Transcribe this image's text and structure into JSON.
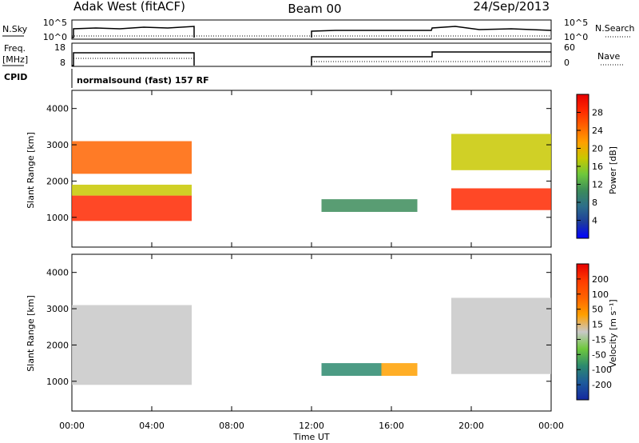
{
  "header": {
    "site": "Adak West (fitACF)",
    "beam": "Beam 00",
    "date": "24/Sep/2013"
  },
  "noise_panel": {
    "left_label": "N.Sky",
    "right_label": "N.Search",
    "left_ticks": [
      "10^5",
      "10^0"
    ],
    "right_ticks": [
      "10^5",
      "10^0"
    ]
  },
  "freq_panel": {
    "left_label_1": "Freq.",
    "left_label_2": "[MHz]",
    "right_label": "Nave",
    "left_ticks": [
      "18",
      "8"
    ],
    "right_ticks": [
      "60",
      "0"
    ]
  },
  "cpid": {
    "label": "CPID",
    "value": "normalsound (fast) 157 RF"
  },
  "power_panel": {
    "ylabel": "Slant Range [km]",
    "yticks": [
      "4000",
      "3000",
      "2000",
      "1000"
    ],
    "colorbar_label": "Power [dB]",
    "colorbar_ticks": [
      "28",
      "24",
      "20",
      "16",
      "12",
      "8",
      "4"
    ],
    "colors": [
      "#0000ff",
      "#1e3c9c",
      "#2d6e8a",
      "#3c8c5a",
      "#6ec83c",
      "#c8c800",
      "#ffa000",
      "#ff6400",
      "#ff2800",
      "#e60000"
    ]
  },
  "velocity_panel": {
    "ylabel": "Slant Range [km]",
    "yticks": [
      "4000",
      "3000",
      "2000",
      "1000"
    ],
    "colorbar_label": "Velocity [m s⁻¹]",
    "colorbar_ticks": [
      "200",
      "100",
      "50",
      "15",
      "-15",
      "-50",
      "-100",
      "-200"
    ],
    "colors": [
      "#1428a0",
      "#1e5a9c",
      "#2d8a6e",
      "#6ec83c",
      "#c8c8c8",
      "#ffa000",
      "#ff6400",
      "#ff3c00",
      "#e60000"
    ]
  },
  "xaxis": {
    "label": "Time UT",
    "ticks": [
      "00:00",
      "04:00",
      "08:00",
      "12:00",
      "16:00",
      "20:00",
      "00:00"
    ]
  },
  "chart_data": {
    "type": "heatmap",
    "title": "Adak West (fitACF) Beam 00 24/Sep/2013",
    "xlabel": "Time UT",
    "ylabel": "Slant Range [km]",
    "xlim_hours": [
      0,
      24
    ],
    "ylim_km": [
      180,
      4500
    ],
    "data_gaps_hours": [
      [
        6,
        12
      ]
    ],
    "power_colorbar_db": [
      0,
      30
    ],
    "velocity_colorbar_ms": [
      -250,
      250
    ],
    "power_regions": [
      {
        "t": [
          0,
          6
        ],
        "range_km": [
          900,
          1600
        ],
        "power_db": 28
      },
      {
        "t": [
          0,
          6
        ],
        "range_km": [
          1600,
          1900
        ],
        "power_db": 18
      },
      {
        "t": [
          0,
          6
        ],
        "range_km": [
          2200,
          3100
        ],
        "power_db": 22
      },
      {
        "t": [
          12.5,
          17.3
        ],
        "range_km": [
          1150,
          1500
        ],
        "power_db": 10
      },
      {
        "t": [
          19,
          24
        ],
        "range_km": [
          1200,
          1800
        ],
        "power_db": 26
      },
      {
        "t": [
          19,
          24
        ],
        "range_km": [
          2300,
          3300
        ],
        "power_db": 18
      }
    ],
    "velocity_regions": [
      {
        "t": [
          0,
          6
        ],
        "range_km": [
          900,
          3100
        ],
        "velocity_ms": 0
      },
      {
        "t": [
          12.5,
          15.5
        ],
        "range_km": [
          1150,
          1500
        ],
        "velocity_ms": -150
      },
      {
        "t": [
          15.5,
          17.3
        ],
        "range_km": [
          1150,
          1500
        ],
        "velocity_ms": 40
      },
      {
        "t": [
          19,
          24
        ],
        "range_km": [
          1200,
          3300
        ],
        "velocity_ms": 0
      }
    ]
  }
}
